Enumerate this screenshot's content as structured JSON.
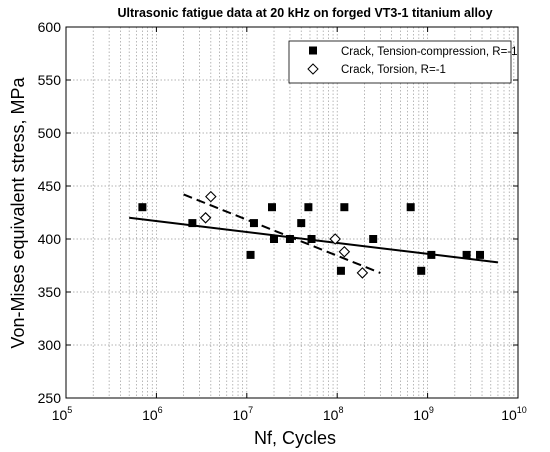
{
  "chart_data": {
    "type": "scatter",
    "title": "Ultrasonic fatigue data at 20 kHz on forged VT3-1 titanium alloy",
    "xlabel": "Nf, Cycles",
    "ylabel": "Von-Mises equivalent stress, MPa",
    "x_scale": "log",
    "xlim": [
      100000,
      10000000000
    ],
    "ylim": [
      250,
      600
    ],
    "y_ticks": [
      250,
      300,
      350,
      400,
      450,
      500,
      550,
      600
    ],
    "x_ticks": [
      {
        "base": "10",
        "exp": "5",
        "value": 100000
      },
      {
        "base": "10",
        "exp": "6",
        "value": 1000000
      },
      {
        "base": "10",
        "exp": "7",
        "value": 10000000
      },
      {
        "base": "10",
        "exp": "8",
        "value": 100000000
      },
      {
        "base": "10",
        "exp": "9",
        "value": 1000000000
      },
      {
        "base": "10",
        "exp": "10",
        "value": 10000000000
      }
    ],
    "grid": true,
    "legend_position": "top-right",
    "series": [
      {
        "name": "Crack, Tension-compression, R=-1",
        "marker": "filled-square",
        "color": "#000000",
        "points": [
          {
            "x": 700000,
            "y": 430
          },
          {
            "x": 2500000,
            "y": 415
          },
          {
            "x": 11000000,
            "y": 385
          },
          {
            "x": 12000000,
            "y": 415
          },
          {
            "x": 19000000,
            "y": 430
          },
          {
            "x": 20000000,
            "y": 400
          },
          {
            "x": 30000000,
            "y": 400
          },
          {
            "x": 40000000,
            "y": 415
          },
          {
            "x": 48000000,
            "y": 430
          },
          {
            "x": 52000000,
            "y": 400
          },
          {
            "x": 110000000,
            "y": 370
          },
          {
            "x": 120000000,
            "y": 430
          },
          {
            "x": 250000000,
            "y": 400
          },
          {
            "x": 650000000,
            "y": 430
          },
          {
            "x": 850000000,
            "y": 370
          },
          {
            "x": 1100000000,
            "y": 385
          },
          {
            "x": 2700000000,
            "y": 385
          },
          {
            "x": 3800000000,
            "y": 385
          }
        ]
      },
      {
        "name": "Crack, Torsion, R=-1",
        "marker": "open-diamond",
        "color": "#000000",
        "points": [
          {
            "x": 3500000,
            "y": 420
          },
          {
            "x": 4000000,
            "y": 440
          },
          {
            "x": 95000000,
            "y": 400
          },
          {
            "x": 120000000,
            "y": 388
          },
          {
            "x": 190000000,
            "y": 368
          }
        ]
      }
    ],
    "trend_lines": [
      {
        "style": "solid",
        "from": {
          "x": 500000,
          "y": 420
        },
        "to": {
          "x": 6000000000,
          "y": 378
        }
      },
      {
        "style": "dashed",
        "from": {
          "x": 2000000,
          "y": 442
        },
        "to": {
          "x": 300000000,
          "y": 368
        }
      }
    ]
  }
}
